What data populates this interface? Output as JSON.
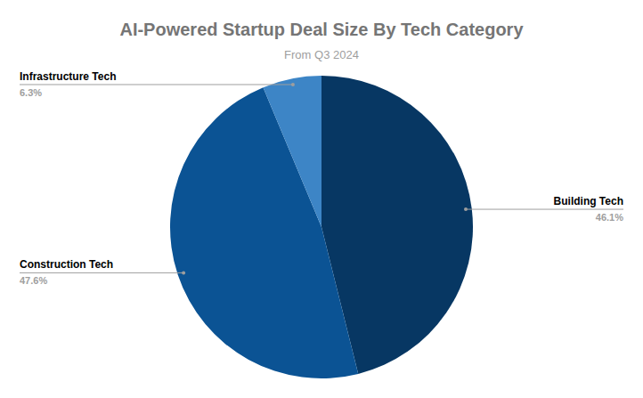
{
  "chart_data": {
    "type": "pie",
    "title": "AI-Powered Startup Deal Size By Tech Category",
    "subtitle": "From Q3 2024",
    "categories": [
      "Building Tech",
      "Construction Tech",
      "Infrastructure Tech"
    ],
    "values": [
      46.1,
      47.6,
      6.3
    ],
    "value_labels": [
      "46.1%",
      "47.6%",
      "6.3%"
    ],
    "colors": [
      "#073763",
      "#0b5394",
      "#3d85c6"
    ],
    "data_labels": true
  }
}
